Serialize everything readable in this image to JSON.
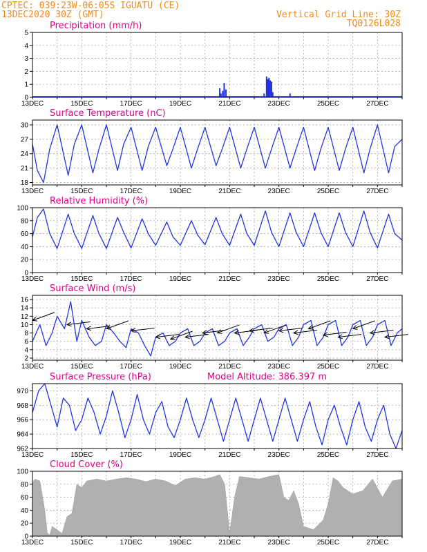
{
  "header": {
    "line1_left": "CPTEC:   039:23W-06:05S  IGUATU (CE)",
    "line2_left": "13DEC2020 30Z (GMT)",
    "line2_right": "Vertical Grid Line: 30Z",
    "line3_right": "TQ0126L028"
  },
  "x_ticks": [
    "13DEC",
    "15DEC",
    "17DEC",
    "19DEC",
    "21DEC",
    "23DEC",
    "25DEC",
    "27DEC"
  ],
  "colors": {
    "line": "#2233dd",
    "bar": "#2233dd",
    "cloud": "#b0b0b0",
    "title": "#e0008a",
    "header": "#f08a1c"
  },
  "chart_data": [
    {
      "type": "bar",
      "title": "Precipitation (mm/h)",
      "ylim": [
        0,
        5
      ],
      "yticks": [
        0,
        1,
        2,
        3,
        4,
        5
      ],
      "x_days": [
        7.6,
        7.65,
        7.72,
        7.78,
        7.85,
        9.4,
        9.5,
        9.55,
        9.6,
        9.65,
        9.7,
        9.75,
        10.45
      ],
      "values": [
        0.7,
        0.3,
        0.5,
        1.1,
        0.6,
        0.3,
        1.6,
        1.4,
        1.5,
        1.3,
        1.2,
        0.4,
        0.3
      ]
    },
    {
      "type": "line",
      "title": "Surface Temperature (nC)",
      "ylim": [
        17.5,
        31
      ],
      "yticks": [
        18,
        21,
        24,
        27,
        30
      ],
      "x_days": [
        0,
        0.2,
        0.45,
        0.7,
        1.0,
        1.45,
        1.7,
        2.0,
        2.45,
        2.7,
        3.0,
        3.45,
        3.7,
        4.0,
        4.45,
        4.7,
        5.0,
        5.45,
        5.7,
        6.0,
        6.45,
        6.7,
        7.0,
        7.45,
        7.7,
        8.0,
        8.45,
        8.7,
        9.0,
        9.45,
        9.7,
        10.0,
        10.45,
        10.7,
        11.0,
        11.45,
        11.7,
        12.0,
        12.45,
        12.7,
        13.0,
        13.45,
        13.7,
        14.0,
        14.45,
        14.7,
        15.0
      ],
      "values": [
        26,
        20.5,
        18,
        25,
        30,
        19.5,
        26,
        30,
        20,
        25,
        30,
        20.5,
        26,
        29.5,
        20.5,
        25.5,
        29.5,
        21.5,
        25,
        29.5,
        21,
        25,
        29.5,
        21.5,
        25,
        29.5,
        21,
        25,
        29.5,
        21,
        25,
        29.5,
        21,
        25,
        29.5,
        20.5,
        25,
        29.5,
        20.5,
        25,
        29.5,
        20,
        25,
        30,
        20,
        25.5,
        27
      ]
    },
    {
      "type": "line",
      "title": "Relative Humidity (%)",
      "ylim": [
        0,
        100
      ],
      "yticks": [
        0,
        20,
        40,
        60,
        80,
        100
      ],
      "x_days": [
        0,
        0.2,
        0.45,
        0.7,
        1.0,
        1.45,
        1.7,
        2.0,
        2.45,
        2.7,
        3.0,
        3.45,
        3.7,
        4.0,
        4.45,
        4.7,
        5.0,
        5.45,
        5.7,
        6.0,
        6.45,
        6.7,
        7.0,
        7.45,
        7.7,
        8.0,
        8.45,
        8.7,
        9.0,
        9.45,
        9.7,
        10.0,
        10.45,
        10.7,
        11.0,
        11.45,
        11.7,
        12.0,
        12.45,
        12.7,
        13.0,
        13.45,
        13.7,
        14.0,
        14.45,
        14.7,
        15.0
      ],
      "values": [
        55,
        85,
        98,
        60,
        37,
        90,
        60,
        37,
        88,
        60,
        37,
        85,
        62,
        38,
        83,
        60,
        42,
        78,
        55,
        42,
        80,
        58,
        43,
        85,
        60,
        42,
        90,
        60,
        42,
        95,
        62,
        40,
        92,
        62,
        40,
        92,
        62,
        40,
        92,
        62,
        40,
        95,
        62,
        38,
        90,
        60,
        50
      ]
    },
    {
      "type": "line",
      "title": "Surface Wind (m/s)",
      "ylim": [
        1.5,
        17
      ],
      "yticks": [
        2,
        4,
        6,
        8,
        10,
        12,
        14,
        16
      ],
      "x_days": [
        0,
        0.3,
        0.55,
        0.8,
        1.0,
        1.3,
        1.55,
        1.8,
        2.0,
        2.3,
        2.55,
        2.8,
        3.0,
        3.3,
        3.55,
        3.8,
        4.0,
        4.3,
        4.55,
        4.8,
        5.0,
        5.3,
        5.55,
        5.8,
        6.0,
        6.3,
        6.55,
        6.8,
        7.0,
        7.3,
        7.55,
        7.8,
        8.0,
        8.3,
        8.55,
        8.8,
        9.0,
        9.3,
        9.55,
        9.8,
        10.0,
        10.3,
        10.55,
        10.8,
        11.0,
        11.3,
        11.55,
        11.8,
        12.0,
        12.3,
        12.55,
        12.8,
        13.0,
        13.3,
        13.55,
        13.8,
        14.0,
        14.3,
        14.55,
        14.8,
        15.0
      ],
      "values": [
        6,
        10,
        5,
        8,
        12,
        9,
        15.5,
        6,
        11,
        7,
        5,
        6,
        10,
        8,
        6,
        4.5,
        9,
        8,
        5,
        2.5,
        7,
        8,
        5,
        6,
        8,
        9,
        5,
        6,
        8,
        9,
        5,
        6,
        8,
        9,
        5,
        7,
        9,
        10,
        6,
        7,
        9,
        10,
        5,
        7,
        10,
        11,
        5,
        7,
        10,
        11,
        5,
        7,
        10,
        11,
        5,
        7,
        10,
        11,
        5,
        8,
        9
      ],
      "arrows_x_days": [
        0.0,
        1.4,
        2.2,
        3.0,
        4.0,
        5.0,
        5.6,
        6.2,
        6.9,
        7.5,
        8.2,
        8.8,
        9.4,
        10.0,
        10.6,
        11.2,
        11.8,
        12.4,
        13.0,
        13.7,
        14.3
      ],
      "arrows_y": [
        11,
        10,
        9,
        9,
        8.5,
        7,
        6.5,
        7,
        8,
        8,
        8,
        8.5,
        8,
        8.5,
        8,
        9,
        7.5,
        7,
        9,
        8,
        7
      ]
    },
    {
      "type": "line",
      "title": "Surface Pressure (hPa)",
      "annotation": "Model Altitude: 386.397 m",
      "ylim": [
        962,
        971
      ],
      "yticks": [
        962,
        964,
        966,
        968,
        970
      ],
      "x_days": [
        0,
        0.25,
        0.5,
        0.75,
        1.0,
        1.25,
        1.5,
        1.75,
        2.0,
        2.25,
        2.5,
        2.75,
        3.0,
        3.25,
        3.5,
        3.75,
        4.0,
        4.25,
        4.5,
        4.75,
        5.0,
        5.25,
        5.5,
        5.75,
        6.0,
        6.25,
        6.5,
        6.75,
        7.0,
        7.25,
        7.5,
        7.75,
        8.0,
        8.25,
        8.5,
        8.75,
        9.0,
        9.25,
        9.5,
        9.75,
        10.0,
        10.25,
        10.5,
        10.75,
        11.0,
        11.25,
        11.5,
        11.75,
        12.0,
        12.25,
        12.5,
        12.75,
        13.0,
        13.25,
        13.5,
        13.75,
        14.0,
        14.25,
        14.5,
        14.75,
        15.0
      ],
      "values": [
        967,
        970,
        971,
        968,
        965,
        969,
        968,
        964.5,
        966,
        969,
        967,
        964,
        966.5,
        970,
        967,
        963.5,
        966,
        969.5,
        966,
        964,
        967,
        968.5,
        965,
        963.5,
        966,
        969,
        966,
        963.5,
        966,
        969,
        966,
        963,
        966,
        969,
        966,
        963,
        966,
        969,
        966,
        963,
        966,
        969,
        966,
        963,
        966,
        968.5,
        965,
        962.5,
        966,
        968,
        965,
        962.5,
        966,
        968.5,
        965,
        963,
        966,
        968,
        964,
        962,
        964.5
      ]
    },
    {
      "type": "area",
      "title": "Cloud Cover (%)",
      "ylim": [
        0,
        100
      ],
      "yticks": [
        0,
        20,
        40,
        60,
        80,
        100
      ],
      "x_days": [
        0,
        0.1,
        0.3,
        0.5,
        0.6,
        0.7,
        0.8,
        1.0,
        1.2,
        1.4,
        1.6,
        1.8,
        2.0,
        2.2,
        2.6,
        3.0,
        3.4,
        3.8,
        4.2,
        4.6,
        5.0,
        5.4,
        5.8,
        6.2,
        6.6,
        7.0,
        7.4,
        7.6,
        7.8,
        8.0,
        8.2,
        8.4,
        8.8,
        9.2,
        9.6,
        10.0,
        10.2,
        10.4,
        10.6,
        10.8,
        11.0,
        11.4,
        11.8,
        12.0,
        12.2,
        12.4,
        12.6,
        12.8,
        13.0,
        13.4,
        13.8,
        14.2,
        14.6,
        15.0
      ],
      "values": [
        82,
        88,
        85,
        40,
        5,
        2,
        15,
        10,
        4,
        30,
        35,
        80,
        75,
        85,
        88,
        85,
        88,
        90,
        88,
        84,
        88,
        85,
        78,
        88,
        90,
        88,
        92,
        95,
        80,
        5,
        60,
        92,
        90,
        88,
        92,
        95,
        60,
        55,
        70,
        50,
        15,
        10,
        25,
        50,
        90,
        85,
        75,
        70,
        65,
        70,
        88,
        60,
        85,
        88
      ]
    }
  ],
  "titles": {
    "p0": "Precipitation (mm/h)",
    "p1": "Surface Temperature (nC)",
    "p2": "Relative Humidity (%)",
    "p3": "Surface Wind (m/s)",
    "p4": "Surface Pressure (hPa)",
    "p4_extra": "Model Altitude: 386.397 m",
    "p5": "Cloud Cover (%)"
  }
}
